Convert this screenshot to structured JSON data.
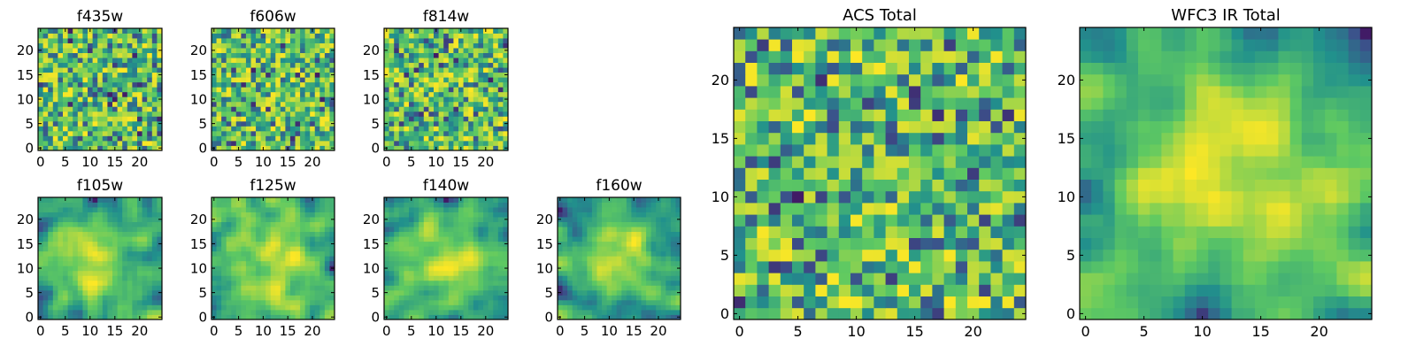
{
  "chart_data": [
    {
      "type": "heatmap",
      "title": "f435w",
      "grid": [
        25,
        25
      ],
      "xlim": [
        0,
        24
      ],
      "ylim": [
        0,
        24
      ],
      "xticks": [
        0,
        5,
        10,
        15,
        20
      ],
      "yticks": [
        0,
        5,
        10,
        15,
        20
      ],
      "colormap": "viridis",
      "pattern": "noise",
      "value_range": [
        0,
        1
      ]
    },
    {
      "type": "heatmap",
      "title": "f606w",
      "grid": [
        25,
        25
      ],
      "xlim": [
        0,
        24
      ],
      "ylim": [
        0,
        24
      ],
      "xticks": [
        0,
        5,
        10,
        15,
        20
      ],
      "yticks": [
        0,
        5,
        10,
        15,
        20
      ],
      "colormap": "viridis",
      "pattern": "noise",
      "value_range": [
        0,
        1
      ]
    },
    {
      "type": "heatmap",
      "title": "f814w",
      "grid": [
        25,
        25
      ],
      "xlim": [
        0,
        24
      ],
      "ylim": [
        0,
        24
      ],
      "xticks": [
        0,
        5,
        10,
        15,
        20
      ],
      "yticks": [
        0,
        5,
        10,
        15,
        20
      ],
      "colormap": "viridis",
      "pattern": "noise",
      "value_range": [
        0,
        1
      ]
    },
    {
      "type": "heatmap",
      "title": "f105w",
      "grid": [
        25,
        25
      ],
      "xlim": [
        0,
        24
      ],
      "ylim": [
        0,
        24
      ],
      "xticks": [
        0,
        5,
        10,
        15,
        20
      ],
      "yticks": [
        0,
        5,
        10,
        15,
        20
      ],
      "colormap": "viridis",
      "pattern": "smooth",
      "value_range": [
        0,
        1
      ]
    },
    {
      "type": "heatmap",
      "title": "f125w",
      "grid": [
        25,
        25
      ],
      "xlim": [
        0,
        24
      ],
      "ylim": [
        0,
        24
      ],
      "xticks": [
        0,
        5,
        10,
        15,
        20
      ],
      "yticks": [
        0,
        5,
        10,
        15,
        20
      ],
      "colormap": "viridis",
      "pattern": "smooth",
      "value_range": [
        0,
        1
      ]
    },
    {
      "type": "heatmap",
      "title": "f140w",
      "grid": [
        25,
        25
      ],
      "xlim": [
        0,
        24
      ],
      "ylim": [
        0,
        24
      ],
      "xticks": [
        0,
        5,
        10,
        15,
        20
      ],
      "yticks": [
        0,
        5,
        10,
        15,
        20
      ],
      "colormap": "viridis",
      "pattern": "smooth",
      "value_range": [
        0,
        1
      ]
    },
    {
      "type": "heatmap",
      "title": "f160w",
      "grid": [
        25,
        25
      ],
      "xlim": [
        0,
        24
      ],
      "ylim": [
        0,
        24
      ],
      "xticks": [
        0,
        5,
        10,
        15,
        20
      ],
      "yticks": [
        0,
        5,
        10,
        15,
        20
      ],
      "colormap": "viridis",
      "pattern": "smooth",
      "value_range": [
        0,
        1
      ]
    },
    {
      "type": "heatmap",
      "title": "ACS Total",
      "grid": [
        25,
        25
      ],
      "xlim": [
        0,
        24
      ],
      "ylim": [
        0,
        24
      ],
      "xticks": [
        0,
        5,
        10,
        15,
        20
      ],
      "yticks": [
        0,
        5,
        10,
        15,
        20
      ],
      "colormap": "viridis",
      "pattern": "noise",
      "value_range": [
        0,
        1
      ]
    },
    {
      "type": "heatmap",
      "title": "WFC3 IR Total",
      "grid": [
        25,
        25
      ],
      "xlim": [
        0,
        24
      ],
      "ylim": [
        0,
        24
      ],
      "xticks": [
        0,
        5,
        10,
        15,
        20
      ],
      "yticks": [
        0,
        5,
        10,
        15,
        20
      ],
      "colormap": "viridis",
      "pattern": "smooth",
      "value_range": [
        0,
        1
      ]
    }
  ],
  "colors": {
    "viridis_stops": [
      "#440154",
      "#3b528b",
      "#21918c",
      "#5ec962",
      "#fde725"
    ]
  }
}
